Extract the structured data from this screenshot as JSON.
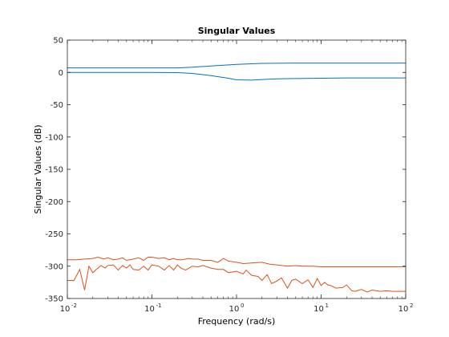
{
  "chart_data": {
    "type": "line",
    "title": "Singular Values",
    "xlabel": "Frequency (rad/s)",
    "ylabel": "Singular Values (dB)",
    "x_scale": "log",
    "xlim": [
      0.01,
      100
    ],
    "ylim": [
      -350,
      50
    ],
    "x_ticks": [
      {
        "value": 0.01,
        "base": "10",
        "exp": "-2"
      },
      {
        "value": 0.1,
        "base": "10",
        "exp": "-1"
      },
      {
        "value": 1,
        "base": "10",
        "exp": "0"
      },
      {
        "value": 10,
        "base": "10",
        "exp": "1"
      },
      {
        "value": 100,
        "base": "10",
        "exp": "2"
      }
    ],
    "y_ticks": [
      50,
      0,
      -50,
      -100,
      -150,
      -200,
      -250,
      -300,
      -350
    ],
    "y_tick_labels": [
      "50",
      "0",
      "-50",
      "-100",
      "-150",
      "-200",
      "-250",
      "-300",
      "-350"
    ],
    "grid": false,
    "box": true,
    "series": [
      {
        "color": "#0072bd",
        "x": [
          0.01,
          0.1,
          0.2,
          0.3,
          0.5,
          1,
          2,
          5,
          10,
          20,
          50,
          100
        ],
        "values": [
          7,
          7,
          7,
          8,
          10,
          12.5,
          14,
          14.5,
          14.5,
          14.5,
          14.5,
          14.5
        ]
      },
      {
        "color": "#0072bd",
        "x": [
          0.01,
          0.1,
          0.2,
          0.3,
          0.5,
          0.8,
          1,
          1.5,
          2,
          3,
          5,
          10,
          20,
          50,
          100
        ],
        "values": [
          0,
          0,
          -0.3,
          -1.5,
          -5,
          -9,
          -11.5,
          -12,
          -11,
          -10,
          -9.5,
          -9,
          -8.5,
          -8.5,
          -8.5
        ]
      },
      {
        "color": "#d95319",
        "x": [
          0.01,
          0.013,
          0.016,
          0.02,
          0.023,
          0.027,
          0.03,
          0.035,
          0.04,
          0.045,
          0.05,
          0.06,
          0.07,
          0.08,
          0.09,
          0.1,
          0.12,
          0.14,
          0.16,
          0.18,
          0.2,
          0.23,
          0.27,
          0.3,
          0.35,
          0.4,
          0.5,
          0.6,
          0.7,
          0.8,
          1,
          1.2,
          1.5,
          2,
          2.5,
          3,
          4,
          5,
          6,
          8,
          10,
          15,
          20,
          30,
          50,
          100
        ],
        "values": [
          -290,
          -290,
          -289,
          -288,
          -286,
          -289,
          -287,
          -290,
          -289,
          -287,
          -291,
          -289,
          -287,
          -291,
          -286,
          -286,
          -288,
          -287,
          -290,
          -288,
          -290,
          -290,
          -288,
          -289,
          -289,
          -291,
          -291,
          -294,
          -288,
          -292,
          -294,
          -296,
          -295,
          -294,
          -297,
          -298,
          -300,
          -299,
          -300,
          -300,
          -301,
          -301,
          -301,
          -301,
          -301,
          -301
        ]
      },
      {
        "color": "#d95319",
        "x": [
          0.01,
          0.012,
          0.014,
          0.016,
          0.018,
          0.02,
          0.022,
          0.025,
          0.028,
          0.03,
          0.035,
          0.04,
          0.045,
          0.05,
          0.055,
          0.06,
          0.07,
          0.08,
          0.09,
          0.1,
          0.12,
          0.14,
          0.16,
          0.18,
          0.2,
          0.22,
          0.25,
          0.3,
          0.35,
          0.4,
          0.5,
          0.6,
          0.7,
          0.8,
          1,
          1.2,
          1.3,
          1.5,
          1.8,
          2,
          2.3,
          2.6,
          3,
          3.4,
          4,
          4.5,
          5,
          6,
          7,
          8,
          9,
          10,
          11,
          12,
          13,
          15,
          18,
          20,
          23,
          25,
          30,
          35,
          40,
          50,
          60,
          70,
          80,
          100
        ],
        "values": [
          -322,
          -322,
          -305,
          -337,
          -300,
          -310,
          -305,
          -299,
          -303,
          -299,
          -298,
          -306,
          -299,
          -303,
          -298,
          -305,
          -306,
          -300,
          -306,
          -298,
          -300,
          -306,
          -299,
          -306,
          -298,
          -303,
          -306,
          -300,
          -301,
          -299,
          -303,
          -305,
          -305,
          -310,
          -308,
          -312,
          -306,
          -314,
          -316,
          -322,
          -313,
          -327,
          -323,
          -318,
          -334,
          -322,
          -320,
          -327,
          -321,
          -333,
          -319,
          -330,
          -325,
          -329,
          -330,
          -334,
          -333,
          -329,
          -338,
          -339,
          -336,
          -340,
          -337,
          -339,
          -338,
          -339,
          -339,
          -339
        ]
      }
    ]
  }
}
